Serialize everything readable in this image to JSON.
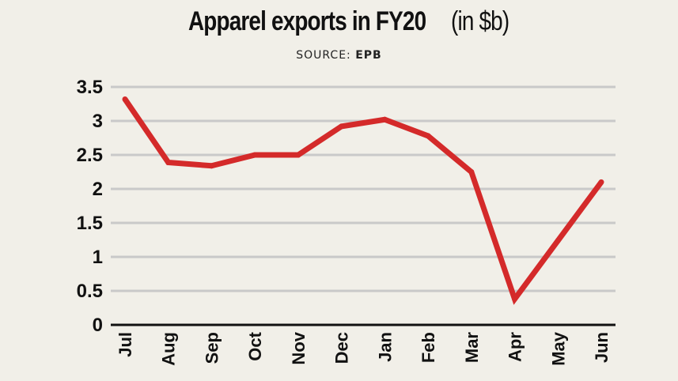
{
  "header": {
    "title_main": "Apparel exports in FY20",
    "title_unit": "(in $b)",
    "source_label": "SOURCE:",
    "source_name": "EPB"
  },
  "chart_data": {
    "type": "line",
    "title": "Apparel exports in FY20 (in $b)",
    "subtitle": "SOURCE: EPB",
    "xlabel": "",
    "ylabel": "",
    "categories": [
      "Jul",
      "Aug",
      "Sep",
      "Oct",
      "Nov",
      "Dec",
      "Jan",
      "Feb",
      "Mar",
      "Apr",
      "May",
      "Jun"
    ],
    "series": [
      {
        "name": "Apparel exports",
        "values": [
          3.32,
          2.39,
          2.34,
          2.5,
          2.5,
          2.92,
          3.02,
          2.78,
          2.25,
          0.38,
          1.24,
          2.1
        ]
      }
    ],
    "ylim": [
      0,
      3.5
    ],
    "yticks": [
      0,
      0.5,
      1,
      1.5,
      2,
      2.5,
      3,
      3.5
    ],
    "ytick_labels": [
      "0",
      "0.5",
      "1",
      "1.5",
      "2",
      "2.5",
      "3",
      "3.5"
    ],
    "grid": true,
    "legend": "none",
    "colors": {
      "line": "#d42a2a",
      "grid": "#c9c9c9",
      "axis": "#111111",
      "background": "#f1efe8"
    }
  }
}
